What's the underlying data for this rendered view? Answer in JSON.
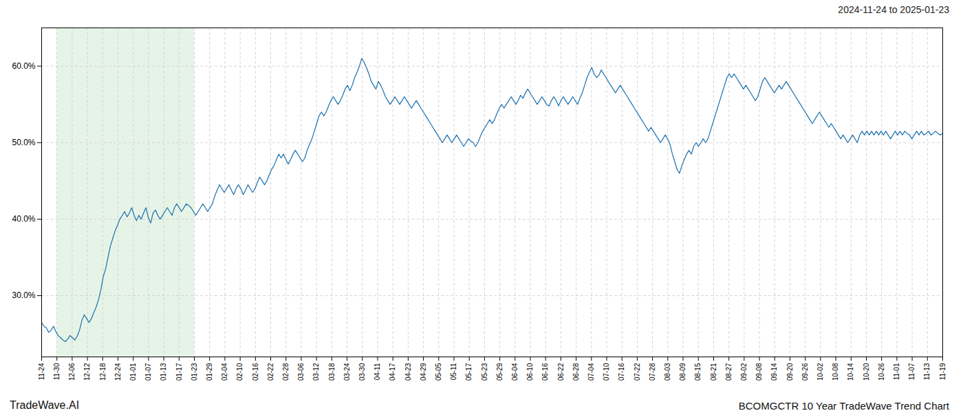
{
  "chart_data": {
    "type": "line",
    "title": "BCOMGCTR 10 Year TradeWave Trend Chart",
    "subtitle": "2024-11-24 to 2025-01-23",
    "annotations": [
      "TradeWave.AI"
    ],
    "color": "#1a6fad",
    "grid": true,
    "shaded_span": {
      "x": [
        6.440678,
        64.40678
      ],
      "color": "#c8e6c9"
    },
    "xlim": [
      0,
      380
    ],
    "xticks": [
      {
        "value": 0,
        "label": "11-24"
      },
      {
        "value": 6.440678,
        "label": "11-30"
      },
      {
        "value": 12.881356,
        "label": "12-06"
      },
      {
        "value": 19.322034,
        "label": "12-12"
      },
      {
        "value": 25.762712,
        "label": "12-18"
      },
      {
        "value": 32.20339,
        "label": "12-24"
      },
      {
        "value": 38.644068,
        "label": "01-01"
      },
      {
        "value": 45.084746,
        "label": "01-07"
      },
      {
        "value": 51.525424,
        "label": "01-13"
      },
      {
        "value": 57.966102,
        "label": "01-17"
      },
      {
        "value": 64.40678,
        "label": "01-23"
      },
      {
        "value": 70.847458,
        "label": "01-29"
      },
      {
        "value": 77.288136,
        "label": "02-04"
      },
      {
        "value": 83.728814,
        "label": "02-10"
      },
      {
        "value": 90.169492,
        "label": "02-16"
      },
      {
        "value": 96.610169,
        "label": "02-22"
      },
      {
        "value": 103.050847,
        "label": "02-28"
      },
      {
        "value": 109.491525,
        "label": "03-06"
      },
      {
        "value": 115.932203,
        "label": "03-12"
      },
      {
        "value": 122.372881,
        "label": "03-18"
      },
      {
        "value": 128.813559,
        "label": "03-24"
      },
      {
        "value": 135.254237,
        "label": "03-30"
      },
      {
        "value": 141.694915,
        "label": "04-11"
      },
      {
        "value": 148.135593,
        "label": "04-17"
      },
      {
        "value": 154.576271,
        "label": "04-23"
      },
      {
        "value": 161.016949,
        "label": "04-29"
      },
      {
        "value": 167.457627,
        "label": "05-05"
      },
      {
        "value": 173.898305,
        "label": "05-11"
      },
      {
        "value": 180.338983,
        "label": "05-17"
      },
      {
        "value": 186.779661,
        "label": "05-23"
      },
      {
        "value": 193.220339,
        "label": "05-29"
      },
      {
        "value": 199.661017,
        "label": "06-04"
      },
      {
        "value": 206.101695,
        "label": "06-10"
      },
      {
        "value": 212.542373,
        "label": "06-16"
      },
      {
        "value": 218.983051,
        "label": "06-22"
      },
      {
        "value": 225.423729,
        "label": "06-28"
      },
      {
        "value": 231.864407,
        "label": "07-04"
      },
      {
        "value": 238.305085,
        "label": "07-10"
      },
      {
        "value": 244.745763,
        "label": "07-16"
      },
      {
        "value": 251.186441,
        "label": "07-22"
      },
      {
        "value": 257.627119,
        "label": "07-28"
      },
      {
        "value": 264.067797,
        "label": "08-03"
      },
      {
        "value": 270.508475,
        "label": "08-09"
      },
      {
        "value": 276.949153,
        "label": "08-15"
      },
      {
        "value": 283.389831,
        "label": "08-21"
      },
      {
        "value": 289.830508,
        "label": "08-27"
      },
      {
        "value": 296.271186,
        "label": "09-02"
      },
      {
        "value": 302.711864,
        "label": "09-08"
      },
      {
        "value": 309.152542,
        "label": "09-14"
      },
      {
        "value": 315.59322,
        "label": "09-20"
      },
      {
        "value": 322.033898,
        "label": "09-26"
      },
      {
        "value": 328.474576,
        "label": "10-02"
      },
      {
        "value": 334.915254,
        "label": "10-08"
      },
      {
        "value": 341.355932,
        "label": "10-14"
      },
      {
        "value": 347.79661,
        "label": "10-20"
      },
      {
        "value": 354.237288,
        "label": "10-26"
      },
      {
        "value": 360.677966,
        "label": "11-01"
      },
      {
        "value": 367.118644,
        "label": "11-07"
      },
      {
        "value": 373.559322,
        "label": "11-13"
      },
      {
        "value": 380,
        "label": "11-19"
      }
    ],
    "ylim": [
      22.0,
      65.0
    ],
    "yticks": [
      {
        "value": 30.0,
        "label": "30.0%"
      },
      {
        "value": 40.0,
        "label": "40.0%"
      },
      {
        "value": 50.0,
        "label": "50.0%"
      },
      {
        "value": 60.0,
        "label": "60.0%"
      }
    ],
    "values": [
      26.5,
      26.0,
      25.8,
      25.2,
      25.5,
      26.0,
      25.3,
      24.8,
      24.5,
      24.2,
      24.0,
      24.3,
      24.8,
      24.5,
      24.2,
      24.7,
      25.5,
      26.8,
      27.5,
      27.0,
      26.5,
      27.0,
      27.8,
      28.5,
      29.5,
      30.8,
      32.5,
      33.5,
      35.0,
      36.5,
      37.5,
      38.5,
      39.2,
      40.0,
      40.5,
      41.0,
      40.3,
      40.8,
      41.5,
      40.5,
      39.8,
      40.5,
      40.0,
      40.8,
      41.5,
      40.2,
      39.5,
      40.8,
      41.2,
      40.5,
      40.0,
      40.5,
      41.0,
      41.5,
      41.0,
      40.5,
      41.5,
      42.0,
      41.5,
      41.0,
      41.5,
      42.0,
      41.8,
      41.5,
      41.0,
      40.5,
      41.0,
      41.5,
      42.0,
      41.5,
      41.0,
      41.5,
      42.0,
      43.0,
      43.8,
      44.5,
      44.0,
      43.5,
      44.0,
      44.5,
      43.8,
      43.2,
      44.0,
      44.5,
      44.0,
      43.2,
      43.8,
      44.5,
      44.0,
      43.5,
      44.0,
      44.8,
      45.5,
      45.0,
      44.5,
      45.0,
      45.8,
      46.5,
      47.0,
      47.8,
      48.5,
      48.0,
      48.5,
      47.8,
      47.2,
      47.8,
      48.5,
      49.0,
      48.5,
      48.0,
      47.5,
      48.0,
      49.0,
      49.8,
      50.5,
      51.5,
      52.5,
      53.5,
      54.0,
      53.5,
      54.0,
      54.8,
      55.5,
      56.0,
      55.5,
      55.0,
      55.5,
      56.2,
      57.0,
      57.5,
      56.8,
      57.5,
      58.5,
      59.2,
      60.0,
      61.0,
      60.5,
      59.8,
      59.0,
      58.0,
      57.5,
      57.0,
      58.0,
      57.5,
      56.8,
      56.0,
      55.5,
      55.0,
      55.5,
      56.0,
      55.5,
      55.0,
      55.5,
      56.0,
      55.5,
      55.0,
      54.5,
      55.0,
      55.5,
      55.0,
      54.5,
      54.0,
      53.5,
      53.0,
      52.5,
      52.0,
      51.5,
      51.0,
      50.5,
      50.0,
      50.5,
      51.0,
      50.5,
      50.0,
      50.5,
      51.0,
      50.5,
      50.0,
      49.5,
      50.0,
      50.5,
      50.2,
      50.0,
      49.5,
      50.0,
      50.8,
      51.5,
      52.0,
      52.5,
      53.0,
      52.5,
      53.0,
      53.8,
      54.5,
      55.0,
      54.5,
      55.0,
      55.5,
      56.0,
      55.5,
      55.0,
      55.5,
      56.2,
      55.8,
      56.5,
      57.0,
      56.5,
      56.0,
      55.5,
      55.0,
      55.5,
      56.0,
      55.5,
      55.0,
      54.8,
      55.5,
      56.0,
      55.5,
      54.8,
      55.5,
      56.0,
      55.5,
      55.0,
      55.5,
      56.0,
      55.5,
      55.0,
      55.8,
      56.5,
      57.5,
      58.5,
      59.2,
      59.8,
      59.0,
      58.5,
      58.8,
      59.5,
      59.0,
      58.5,
      58.0,
      57.5,
      57.0,
      56.5,
      57.0,
      57.5,
      57.0,
      56.5,
      56.0,
      55.5,
      55.0,
      54.5,
      54.0,
      53.5,
      53.0,
      52.5,
      52.0,
      51.5,
      52.0,
      51.5,
      51.0,
      50.5,
      50.0,
      50.5,
      51.0,
      50.5,
      49.8,
      48.5,
      47.5,
      46.5,
      46.0,
      47.0,
      47.8,
      48.5,
      49.0,
      48.5,
      49.5,
      50.0,
      49.5,
      50.0,
      50.5,
      50.0,
      50.5,
      51.5,
      52.5,
      53.5,
      54.5,
      55.5,
      56.5,
      57.5,
      58.5,
      59.0,
      58.5,
      59.0,
      58.5,
      58.0,
      57.5,
      57.0,
      57.5,
      57.0,
      56.5,
      56.0,
      55.5,
      56.0,
      57.0,
      58.0,
      58.5,
      58.0,
      57.5,
      57.0,
      56.5,
      57.0,
      57.5,
      57.0,
      57.5,
      58.0,
      57.5,
      57.0,
      56.5,
      56.0,
      55.5,
      55.0,
      54.5,
      54.0,
      53.5,
      53.0,
      52.5,
      53.0,
      53.5,
      54.0,
      53.5,
      53.0,
      52.5,
      52.0,
      52.5,
      52.0,
      51.5,
      51.0,
      50.5,
      51.0,
      50.5,
      50.0,
      50.5,
      51.0,
      50.5,
      50.0,
      51.0,
      51.5,
      51.0,
      51.5,
      51.0,
      51.5,
      51.0,
      51.5,
      51.0,
      51.5,
      51.0,
      51.5,
      51.0,
      50.5,
      51.0,
      51.5,
      51.0,
      51.5,
      51.0,
      51.5,
      51.2,
      51.0,
      50.5,
      51.0,
      51.5,
      51.0,
      51.5,
      51.0,
      51.2,
      51.5,
      51.0,
      51.2,
      51.5,
      51.2,
      51.0,
      51.2
    ]
  }
}
